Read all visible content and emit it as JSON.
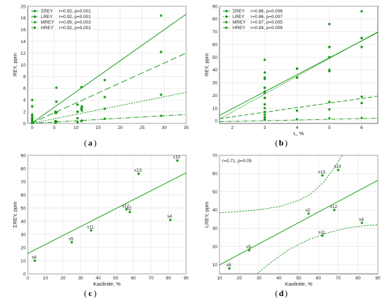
{
  "panel_labels": [
    "a",
    "b",
    "c",
    "d"
  ],
  "colors": {
    "series": "#1a9a1a",
    "axis": "#444444",
    "grid": "#dddddd"
  },
  "chart_data": [
    {
      "id": "a",
      "type": "scatter",
      "xlabel": "",
      "ylabel": "REY, ppm",
      "xlim": [
        -1,
        35
      ],
      "ylim": [
        0,
        20
      ],
      "xticks": [
        0,
        5,
        10,
        15,
        20,
        25,
        30,
        35
      ],
      "yticks": [
        0,
        2,
        4,
        6,
        8,
        10,
        12,
        14,
        16,
        18,
        20
      ],
      "grid": true,
      "legend_position": "top-left",
      "series": [
        {
          "name": "ΣREY",
          "stat": "r=0.92, p=0.001",
          "marker": "circle",
          "dash": "",
          "points": [
            [
              0,
              0.3
            ],
            [
              0,
              0.6
            ],
            [
              0,
              1.0
            ],
            [
              0,
              1.5
            ],
            [
              0,
              4.0
            ],
            [
              5.3,
              2.0
            ],
            [
              5.5,
              6.1
            ],
            [
              10.3,
              3.2
            ],
            [
              11.2,
              6.2
            ],
            [
              11.3,
              2.7
            ],
            [
              16.5,
              7.4
            ],
            [
              29.3,
              18.4
            ]
          ],
          "fit": [
            0.1,
            0.53
          ]
        },
        {
          "name": "LREY",
          "stat": "r=0.92, p=0.001",
          "marker": "square",
          "dash": "9 4",
          "points": [
            [
              0,
              0.2
            ],
            [
              0,
              0.5
            ],
            [
              0,
              0.8
            ],
            [
              0,
              1.2
            ],
            [
              0,
              2.9
            ],
            [
              5.3,
              1.8
            ],
            [
              5.5,
              3.7
            ],
            [
              10.3,
              2.0
            ],
            [
              11.2,
              2.5
            ],
            [
              11.3,
              2.9
            ],
            [
              16.5,
              4.5
            ],
            [
              29.3,
              12.2
            ]
          ],
          "fit": [
            0.1,
            0.34
          ]
        },
        {
          "name": "MREY",
          "stat": "r=0.89, p=0.003",
          "marker": "circle",
          "dash": "2 1.6",
          "points": [
            [
              0,
              0.1
            ],
            [
              0,
              0.2
            ],
            [
              0,
              0.4
            ],
            [
              0,
              0.5
            ],
            [
              0,
              0.8
            ],
            [
              5.3,
              0.4
            ],
            [
              5.5,
              1.8
            ],
            [
              10.3,
              0.9
            ],
            [
              11.2,
              2.6
            ],
            [
              11.3,
              2.2
            ],
            [
              16.5,
              2.5
            ],
            [
              29.3,
              4.9
            ]
          ],
          "fit": [
            0.05,
            0.15
          ]
        },
        {
          "name": "HREY",
          "stat": "r=0.92, p=0.001",
          "marker": "circle",
          "dash": "7 2 1.5 2",
          "points": [
            [
              0,
              0.05
            ],
            [
              0,
              0.1
            ],
            [
              0,
              0.2
            ],
            [
              0,
              0.3
            ],
            [
              0,
              0.4
            ],
            [
              5.3,
              0.1
            ],
            [
              5.5,
              0.3
            ],
            [
              10.3,
              0.2
            ],
            [
              11.2,
              0.4
            ],
            [
              11.3,
              0.5
            ],
            [
              16.5,
              0.8
            ],
            [
              29.3,
              1.3
            ]
          ],
          "fit": [
            0.02,
            0.043
          ]
        }
      ]
    },
    {
      "id": "b",
      "type": "scatter",
      "xlabel": "L, %",
      "ylabel": "REY, ppm",
      "xlim": [
        1.6,
        6.5
      ],
      "ylim": [
        -2,
        90
      ],
      "xticks": [
        2,
        3,
        4,
        5,
        6
      ],
      "yticks": [
        0,
        10,
        20,
        30,
        40,
        50,
        60,
        70,
        80,
        90
      ],
      "grid": true,
      "legend_position": "top-left",
      "series": [
        {
          "name": "ΣREY",
          "stat": "r=0.86, p=0.006",
          "marker": "circle",
          "dash": "",
          "points": [
            [
              3,
              48
            ],
            [
              3,
              38
            ],
            [
              3,
              33
            ],
            [
              3,
              26
            ],
            [
              3,
              23
            ],
            [
              3,
              18
            ],
            [
              4,
              41
            ],
            [
              4,
              34
            ],
            [
              5,
              76
            ],
            [
              5,
              58
            ],
            [
              5,
              39
            ],
            [
              6,
              86
            ],
            [
              6,
              65
            ]
          ],
          "fit": [
            -17,
            13.3
          ]
        },
        {
          "name": "LREY",
          "stat": "r=0.86, p=0.007",
          "marker": "square",
          "dash": "1.6 1.4",
          "points": [
            [
              3,
              34
            ],
            [
              3,
              26
            ],
            [
              3,
              22
            ],
            [
              3,
              18
            ],
            [
              3,
              13
            ],
            [
              4,
              41
            ],
            [
              4,
              34
            ],
            [
              5,
              58
            ],
            [
              5,
              50
            ],
            [
              5,
              40
            ],
            [
              6,
              65
            ],
            [
              6,
              58
            ]
          ],
          "fit": [
            -21,
            14.0
          ]
        },
        {
          "name": "MREY",
          "stat": "r=0.87, p=0.005",
          "marker": "circle",
          "dash": "6 3",
          "points": [
            [
              3,
              10
            ],
            [
              3,
              7
            ],
            [
              3,
              5
            ],
            [
              3,
              3
            ],
            [
              4,
              8
            ],
            [
              5,
              15
            ],
            [
              5,
              9
            ],
            [
              6,
              19
            ],
            [
              6,
              14
            ]
          ],
          "fit": [
            -4,
            3.6
          ]
        },
        {
          "name": "HREY",
          "stat": "r=0.84, p=0.008",
          "marker": "circle",
          "dash": "6 2 1.5 2",
          "points": [
            [
              3,
              1.5
            ],
            [
              3,
              1.0
            ],
            [
              4,
              1.2
            ],
            [
              5,
              2.0
            ],
            [
              6,
              2.3
            ]
          ],
          "fit": [
            -1.5,
            0.55
          ]
        }
      ]
    },
    {
      "id": "c",
      "type": "scatter",
      "xlabel": "Kaolinite, %",
      "ylabel": "ΣREY, ppm",
      "xlim": [
        0,
        90
      ],
      "ylim": [
        0,
        90
      ],
      "xticks": [
        0,
        10,
        20,
        30,
        40,
        50,
        60,
        70,
        80,
        90
      ],
      "yticks": [
        0,
        10,
        20,
        30,
        40,
        50,
        60,
        70,
        80,
        90
      ],
      "grid": true,
      "points": [
        {
          "label": "s6",
          "x": 4,
          "y": 10
        },
        {
          "label": "s5",
          "x": 25,
          "y": 24
        },
        {
          "label": "s11",
          "x": 36,
          "y": 33
        },
        {
          "label": "s12",
          "x": 56,
          "y": 49
        },
        {
          "label": "s2",
          "x": 58,
          "y": 47
        },
        {
          "label": "s13",
          "x": 63,
          "y": 76
        },
        {
          "label": "s10",
          "x": 85,
          "y": 86
        },
        {
          "label": "s4",
          "x": 81,
          "y": 41
        }
      ],
      "fit": [
        15.5,
        0.68
      ]
    },
    {
      "id": "d",
      "type": "scatter",
      "xlabel": "Kaolinite, %",
      "ylabel": "LREY, ppm",
      "annotation": "r=0.71, p=0.05",
      "xlim": [
        10,
        90
      ],
      "ylim": [
        5,
        70
      ],
      "xticks": [
        10,
        20,
        30,
        40,
        50,
        60,
        70,
        80,
        90
      ],
      "yticks": [
        10,
        20,
        30,
        40,
        50,
        60,
        70
      ],
      "grid": true,
      "points": [
        {
          "label": "s6",
          "x": 15,
          "y": 8
        },
        {
          "label": "s5",
          "x": 25,
          "y": 18
        },
        {
          "label": "s2",
          "x": 55,
          "y": 38
        },
        {
          "label": "s12",
          "x": 68,
          "y": 40
        },
        {
          "label": "s11",
          "x": 62,
          "y": 26
        },
        {
          "label": "s13",
          "x": 62,
          "y": 59
        },
        {
          "label": "s10",
          "x": 70,
          "y": 62
        },
        {
          "label": "s4",
          "x": 82,
          "y": 33
        }
      ],
      "fit": [
        4.1,
        0.58
      ],
      "conf_upper": [
        [
          10,
          38.5
        ],
        [
          20,
          39.2
        ],
        [
          30,
          40.2
        ],
        [
          40,
          41.8
        ],
        [
          50,
          45.3
        ],
        [
          56,
          48.7
        ],
        [
          62,
          54.6
        ],
        [
          67,
          61.5
        ],
        [
          72,
          70
        ]
      ],
      "conf_lower": [
        [
          29,
          5
        ],
        [
          35,
          10.5
        ],
        [
          45,
          18.3
        ],
        [
          55,
          23.8
        ],
        [
          65,
          27.6
        ],
        [
          75,
          30.3
        ],
        [
          85,
          31.6
        ],
        [
          90,
          31.9
        ]
      ]
    }
  ]
}
